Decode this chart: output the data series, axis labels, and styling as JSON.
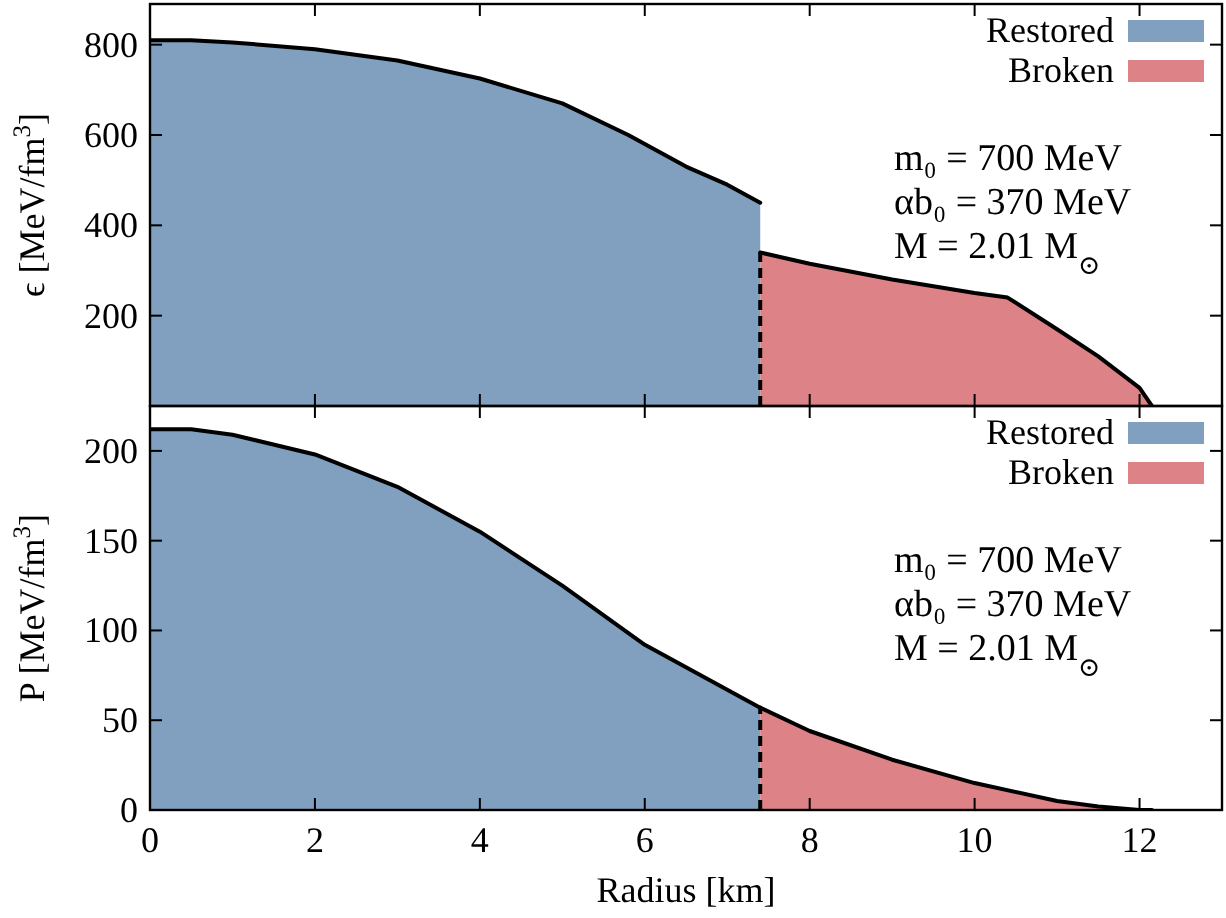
{
  "chart_data": [
    {
      "type": "area",
      "ylabel": "ϵ [MeV/fm$^{3}$]",
      "xlim": [
        0,
        13
      ],
      "xticks": [
        0,
        2,
        4,
        6,
        8,
        10,
        12
      ],
      "ylim": [
        0,
        890
      ],
      "yticks": [
        200,
        400,
        600,
        800
      ],
      "tick_labels": "y",
      "legend": "top right",
      "annotations": [
        "m₀ = 700 MeV",
        "αb₀ = 370 MeV",
        "M = 2.01 M$_{⊙}$"
      ],
      "ref_lines": [
        {
          "axis": "x",
          "value": 7.4,
          "line_style": "dashed",
          "color": "#000000"
        }
      ],
      "series": [
        {
          "name": "Restored",
          "color": "#819fbe",
          "x": [
            0,
            0.5,
            1,
            2,
            3,
            4,
            5,
            5.8,
            6.5,
            7,
            7.4
          ],
          "values": [
            810,
            810,
            805,
            790,
            765,
            725,
            670,
            600,
            530,
            490,
            450
          ]
        },
        {
          "name": "Broken",
          "color": "#dd8387",
          "x": [
            7.4,
            8,
            9,
            10,
            10.4,
            11,
            11.5,
            12,
            12.15
          ],
          "values": [
            340,
            315,
            280,
            250,
            240,
            170,
            110,
            40,
            0
          ]
        }
      ]
    },
    {
      "type": "area",
      "xlabel": "Radius [km]",
      "ylabel": "P [MeV/fm$^{3}$]",
      "xlim": [
        0,
        13
      ],
      "xticks": [
        0,
        2,
        4,
        6,
        8,
        10,
        12
      ],
      "ylim": [
        0,
        225
      ],
      "yticks": [
        0,
        50,
        100,
        150,
        200
      ],
      "legend": "top right",
      "annotations": [
        "m₀ = 700 MeV",
        "αb₀ = 370 MeV",
        "M = 2.01 M$_{⊙}$"
      ],
      "ref_lines": [
        {
          "axis": "x",
          "value": 7.4,
          "line_style": "dashed",
          "color": "#000000"
        }
      ],
      "series": [
        {
          "name": "Restored",
          "color": "#819fbe",
          "x": [
            0,
            0.5,
            1,
            2,
            3,
            4,
            5,
            6,
            7,
            7.4
          ],
          "values": [
            212,
            212,
            209,
            198,
            180,
            155,
            125,
            92,
            67,
            57
          ]
        },
        {
          "name": "Broken",
          "color": "#dd8387",
          "x": [
            7.4,
            8,
            9,
            10,
            11,
            11.5,
            12,
            12.15
          ],
          "values": [
            57,
            44,
            28,
            15,
            5,
            2,
            0,
            0
          ]
        }
      ]
    }
  ]
}
